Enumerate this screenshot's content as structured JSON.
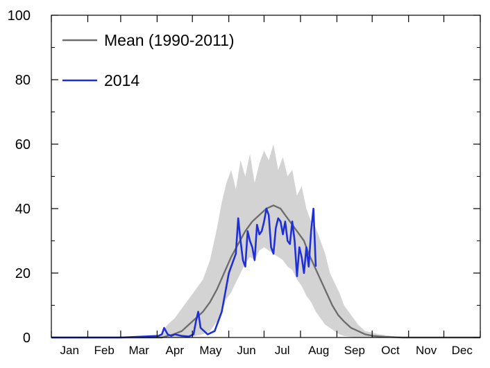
{
  "chart_data": {
    "type": "line",
    "title": "",
    "xlabel": "",
    "ylabel": "",
    "ylim": [
      0,
      100
    ],
    "xlim": [
      1,
      366
    ],
    "yticks": [
      0,
      20,
      40,
      60,
      80,
      100
    ],
    "months": [
      {
        "label": "Jan",
        "start": 1
      },
      {
        "label": "Feb",
        "start": 32
      },
      {
        "label": "Mar",
        "start": 60
      },
      {
        "label": "Apr",
        "start": 91
      },
      {
        "label": "May",
        "start": 121
      },
      {
        "label": "Jun",
        "start": 152
      },
      {
        "label": "Jul",
        "start": 182
      },
      {
        "label": "Aug",
        "start": 213
      },
      {
        "label": "Sep",
        "start": 244
      },
      {
        "label": "Oct",
        "start": 274
      },
      {
        "label": "Nov",
        "start": 305
      },
      {
        "label": "Dec",
        "start": 335
      }
    ],
    "grid": false,
    "legend_position": "top-left",
    "colors": {
      "mean": "#6e6e6e",
      "series_2014": "#1f2fd8",
      "range_band": "#d3d3d3"
    },
    "series": [
      {
        "name": "Mean (1990-2011)",
        "x": [
          1,
          95,
          105,
          112,
          118,
          124,
          130,
          136,
          142,
          148,
          154,
          160,
          166,
          172,
          178,
          184,
          190,
          196,
          200,
          204,
          208,
          212,
          216,
          220,
          225,
          230,
          235,
          240,
          245,
          250,
          256,
          262,
          268,
          275,
          285,
          300,
          366
        ],
        "values": [
          0,
          0,
          1,
          2,
          4,
          6,
          8,
          11,
          15,
          20,
          25,
          29,
          33,
          36,
          38,
          40,
          41,
          40,
          38,
          36,
          34,
          32,
          30,
          26,
          22,
          18,
          14,
          10,
          7,
          5,
          3,
          2,
          1,
          0.5,
          0.2,
          0,
          0
        ]
      },
      {
        "name": "2014",
        "x": [
          1,
          60,
          92,
          95,
          97,
          100,
          103,
          106,
          112,
          118,
          122,
          124,
          126,
          128,
          134,
          140,
          146,
          152,
          158,
          160,
          162,
          164,
          166,
          168,
          170,
          172,
          174,
          176,
          178,
          180,
          182,
          184,
          186,
          188,
          190,
          192,
          194,
          196,
          198,
          200,
          202,
          204,
          206,
          208,
          210,
          212,
          214,
          216,
          218,
          220,
          222,
          224,
          226
        ],
        "values": [
          0,
          0,
          0.5,
          1,
          3,
          1,
          0.5,
          1,
          0.5,
          0.3,
          1,
          5,
          8,
          3,
          1,
          2,
          8,
          20,
          26,
          37,
          30,
          24,
          22,
          33,
          30,
          28,
          24,
          35,
          32,
          33,
          36,
          40,
          38,
          28,
          26,
          34,
          37,
          36,
          32,
          36,
          30,
          29,
          36,
          30,
          19,
          28,
          25,
          20,
          28,
          22,
          33,
          40,
          22
        ]
      }
    ],
    "range_band": {
      "x": [
        1,
        92,
        100,
        106,
        112,
        118,
        124,
        130,
        136,
        142,
        146,
        150,
        154,
        158,
        162,
        166,
        170,
        174,
        178,
        182,
        186,
        190,
        194,
        198,
        202,
        206,
        210,
        214,
        218,
        222,
        226,
        230,
        234,
        238,
        242,
        246,
        250,
        256,
        262,
        268,
        274,
        280,
        290,
        300,
        366
      ],
      "upper": [
        0,
        0,
        4,
        6,
        9,
        12,
        15,
        18,
        24,
        34,
        42,
        48,
        52,
        46,
        55,
        50,
        57,
        48,
        54,
        58,
        55,
        60,
        52,
        56,
        50,
        52,
        44,
        47,
        40,
        36,
        34,
        30,
        26,
        20,
        17,
        14,
        10,
        7,
        4,
        2,
        1.5,
        1,
        0.5,
        0,
        0
      ],
      "lower": [
        0,
        0,
        0,
        0,
        0,
        0,
        0.5,
        1,
        2,
        5,
        8,
        12,
        14,
        17,
        20,
        23,
        25,
        24,
        27,
        28,
        27,
        26,
        25,
        24,
        22,
        21,
        18,
        16,
        13,
        11,
        8,
        6,
        4,
        3,
        2,
        1,
        0.5,
        0.2,
        0,
        0,
        0,
        0,
        0,
        0,
        0
      ]
    }
  }
}
